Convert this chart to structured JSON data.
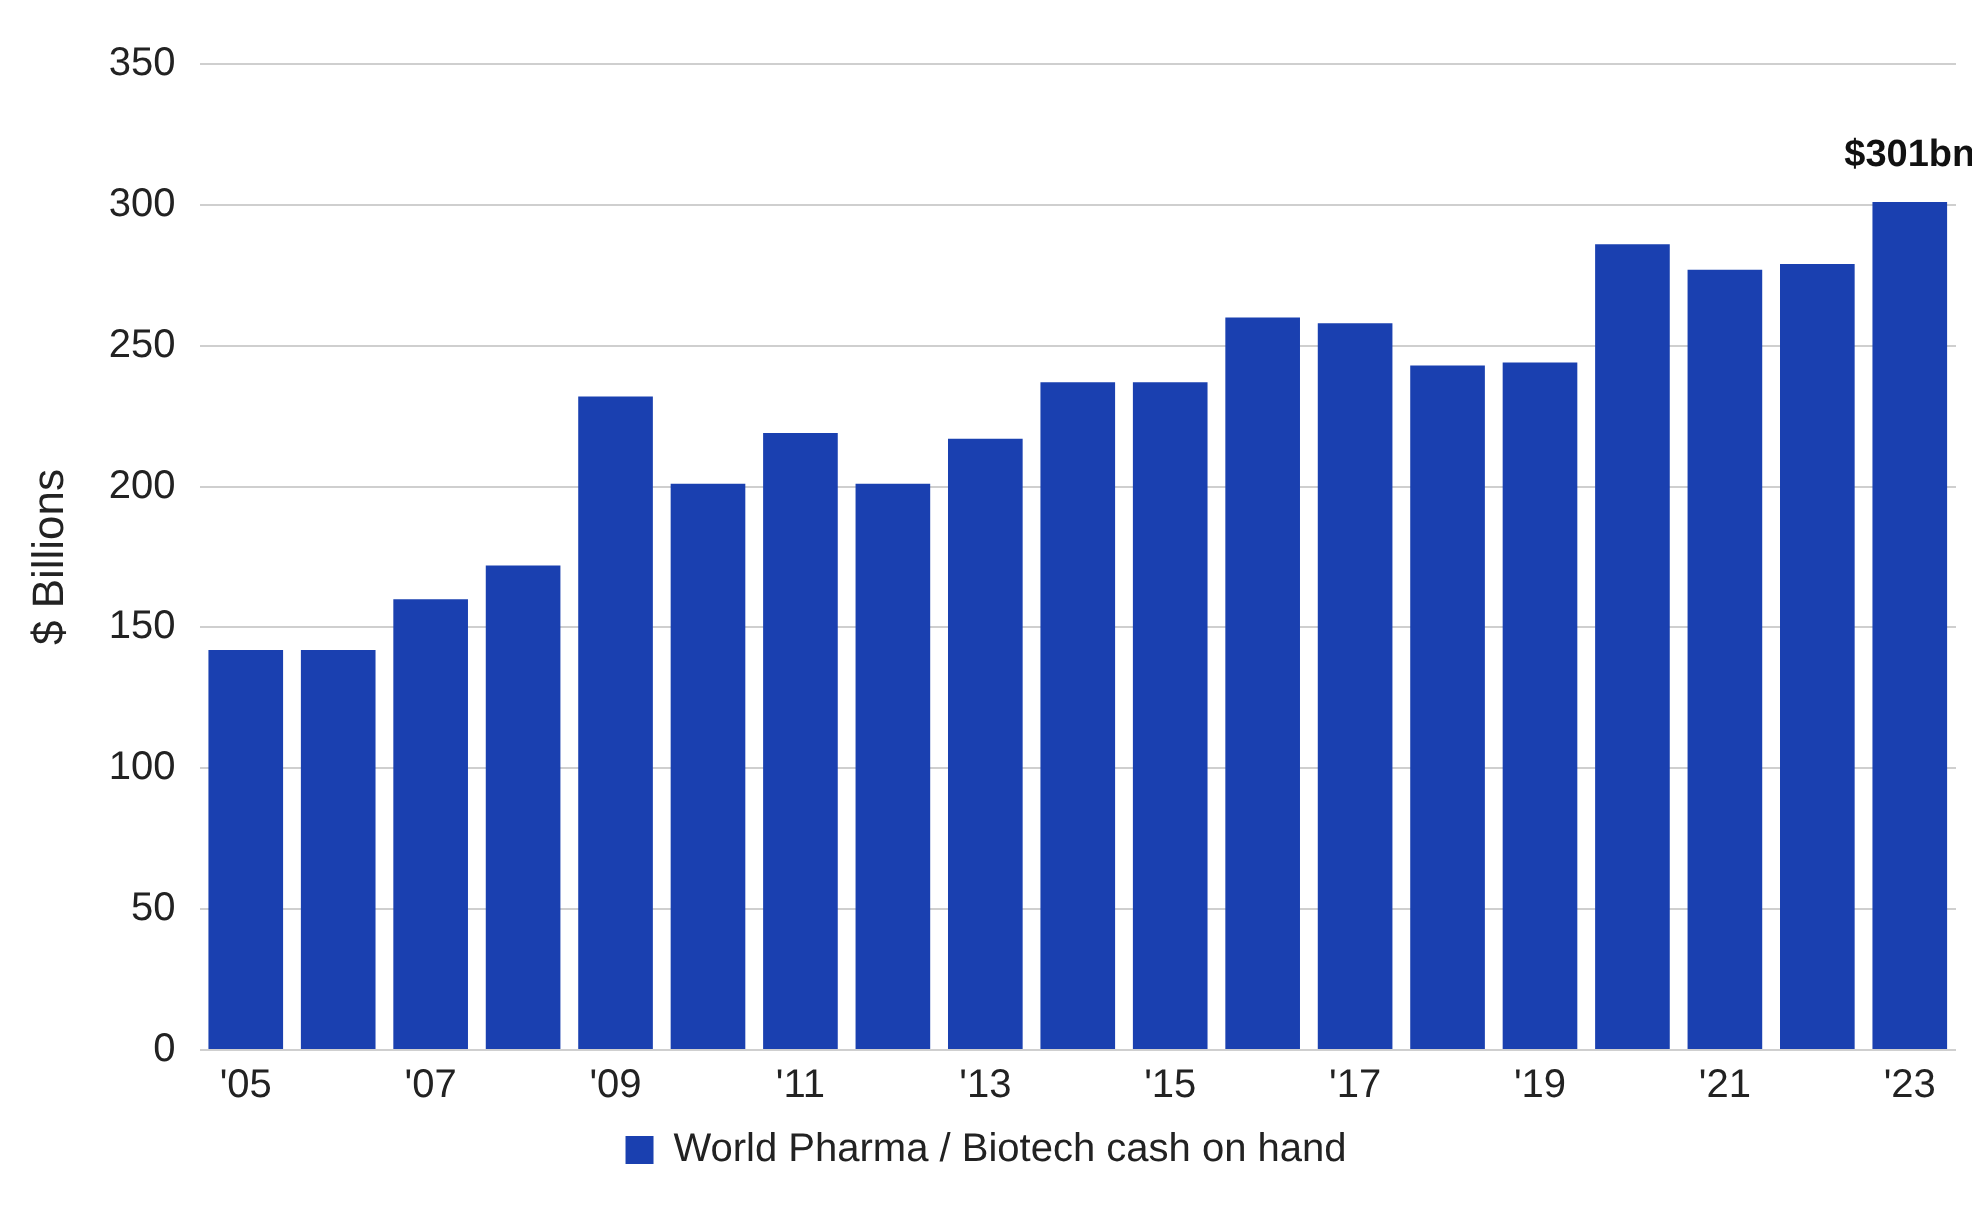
{
  "chart_data": {
    "type": "bar",
    "ylabel": "$ Billions",
    "categories": [
      "'05",
      null,
      "'07",
      null,
      "'09",
      null,
      "'11",
      null,
      "'13",
      null,
      "'15",
      null,
      "'17",
      null,
      "'19",
      null,
      "'21",
      null,
      "'23"
    ],
    "series": [
      {
        "name": "World Pharma / Biotech cash on hand",
        "color": "#1a40b0",
        "values": [
          142,
          142,
          160,
          172,
          232,
          201,
          219,
          201,
          217,
          237,
          237,
          260,
          258,
          243,
          244,
          286,
          277,
          279,
          301
        ],
        "value_labels": [
          null,
          null,
          null,
          null,
          null,
          null,
          null,
          null,
          null,
          null,
          null,
          null,
          null,
          null,
          null,
          null,
          null,
          null,
          "$301bn"
        ]
      }
    ],
    "ylim": [
      0,
      350
    ],
    "yticks": [
      0,
      50,
      100,
      150,
      200,
      250,
      300,
      350
    ],
    "grid": "y",
    "legend": "bottom"
  }
}
